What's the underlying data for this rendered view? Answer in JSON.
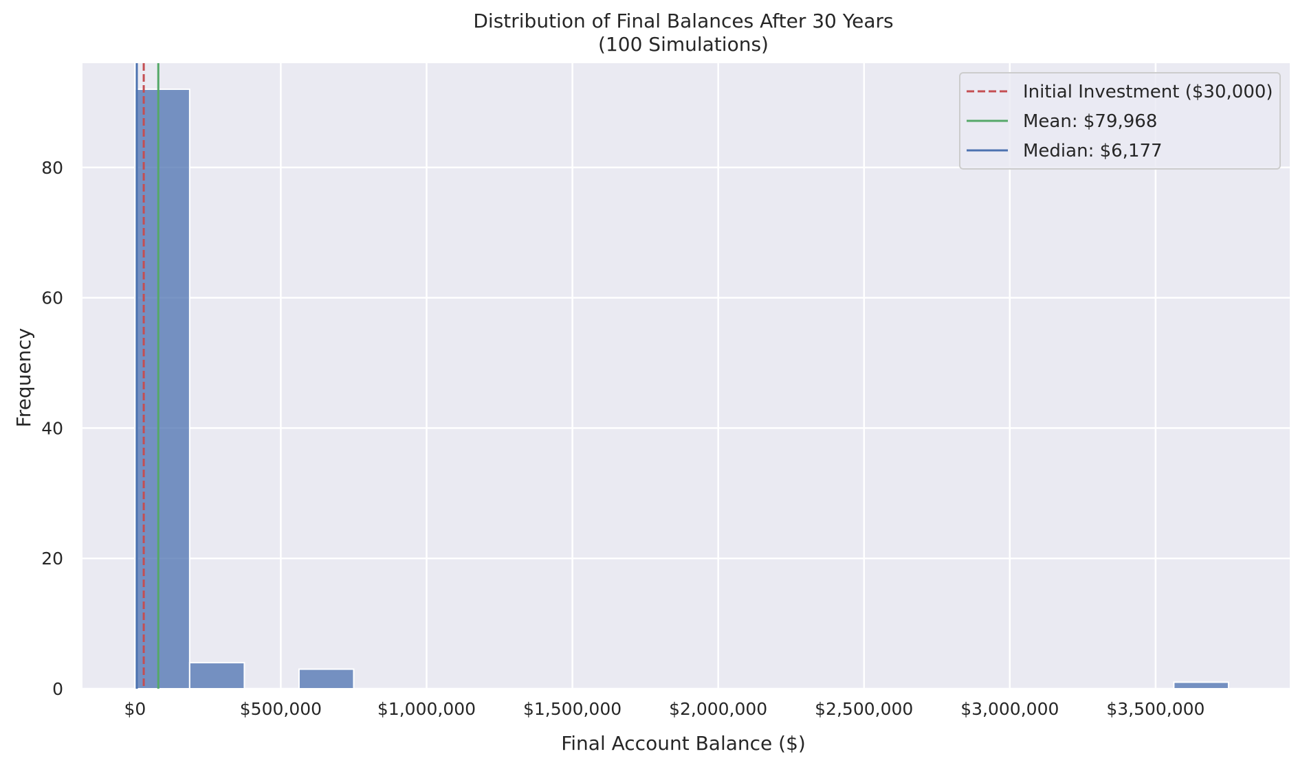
{
  "chart_data": {
    "type": "bar",
    "title": "Distribution of Final Balances After 30 Years",
    "subtitle": "(100 Simulations)",
    "xlabel": "Final Account Balance ($)",
    "ylabel": "Frequency",
    "xlim": [
      -180000,
      3960000
    ],
    "ylim": [
      0,
      96
    ],
    "x_ticks": [
      0,
      500000,
      1000000,
      1500000,
      2000000,
      2500000,
      3000000,
      3500000
    ],
    "x_tick_labels": [
      "$0",
      "$500,000",
      "$1,000,000",
      "$1,500,000",
      "$2,000,000",
      "$2,500,000",
      "$3,000,000",
      "$3,500,000"
    ],
    "y_ticks": [
      0,
      20,
      40,
      60,
      80
    ],
    "y_tick_labels": [
      "0",
      "20",
      "40",
      "60",
      "80"
    ],
    "bins": [
      {
        "start": 0,
        "end": 187500,
        "count": 92
      },
      {
        "start": 187500,
        "end": 375000,
        "count": 4
      },
      {
        "start": 562500,
        "end": 750000,
        "count": 3
      },
      {
        "start": 3562500,
        "end": 3750000,
        "count": 1
      }
    ],
    "reference_lines": [
      {
        "name": "Initial Investment ($30,000)",
        "value": 30000,
        "color": "#c44e52",
        "style": "dashed"
      },
      {
        "name": "Mean: $79,968",
        "value": 79968,
        "color": "#55a868",
        "style": "solid"
      },
      {
        "name": "Median: $6,177",
        "value": 6177,
        "color": "#4c72b0",
        "style": "solid"
      }
    ],
    "bar_color": "#4c72b0",
    "background_color": "#eaeaf2",
    "grid": true,
    "legend_position": "top-right"
  }
}
